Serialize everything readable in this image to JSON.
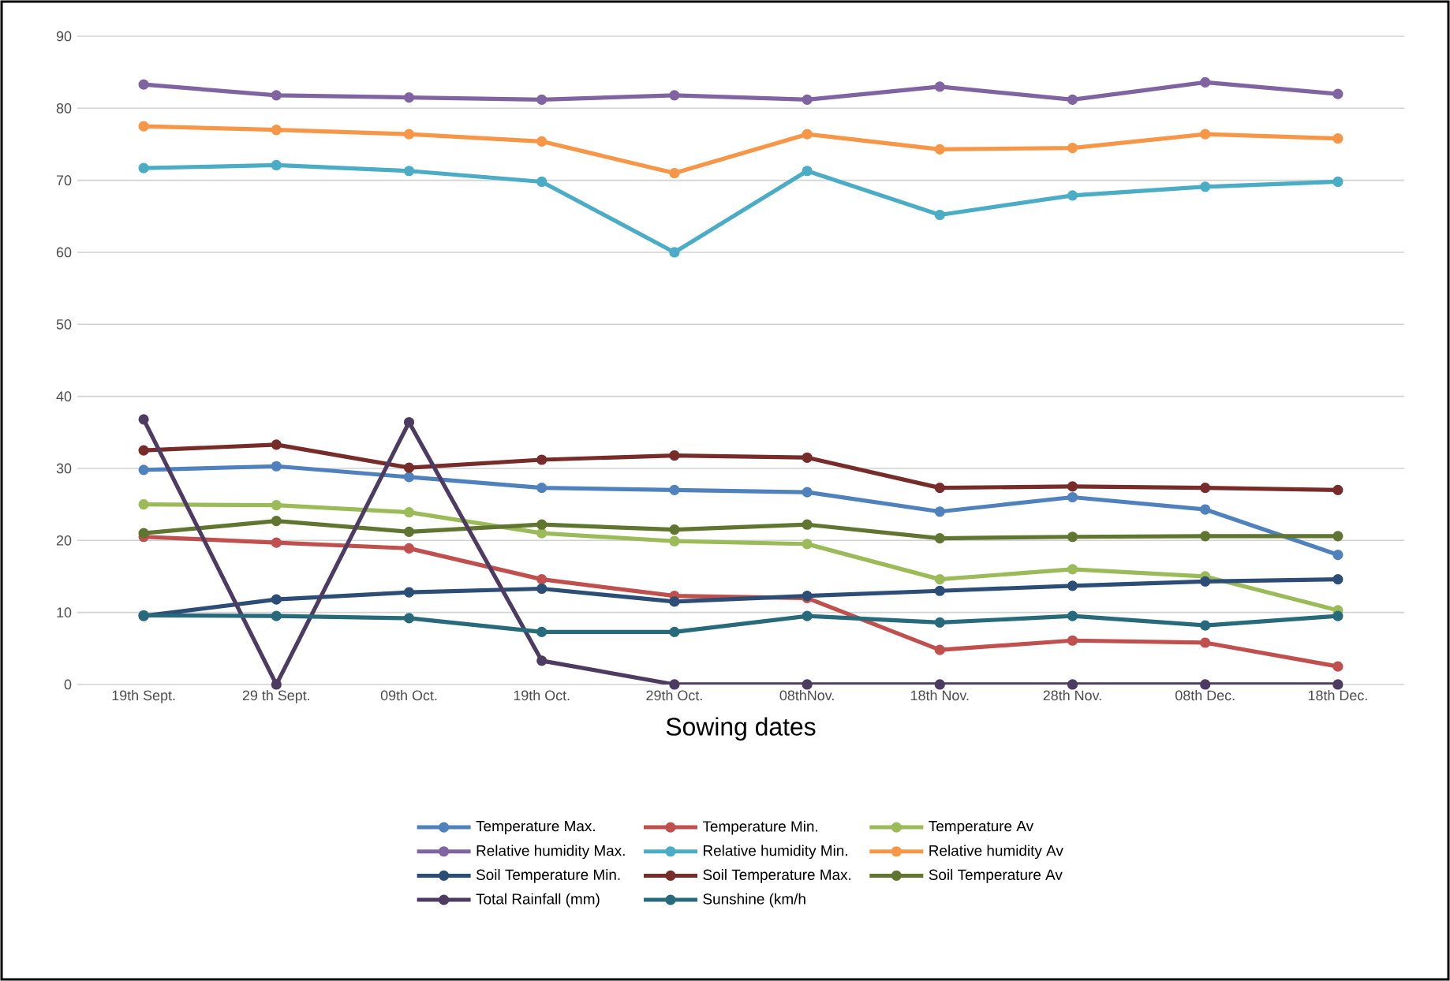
{
  "chart_data": {
    "type": "line",
    "xlabel": "Sowing dates",
    "categories": [
      "19th Sept.",
      "29 th Sept.",
      "09th  Oct.",
      "19th Oct.",
      "29th Oct.",
      "08thNov.",
      "18th Nov.",
      "28th Nov.",
      "08th Dec.",
      "18th Dec."
    ],
    "ylim": [
      0,
      90
    ],
    "yticks": [
      0,
      10,
      20,
      30,
      40,
      50,
      60,
      70,
      80,
      90
    ],
    "grid": "y",
    "legend": "bottom",
    "marker": "circle",
    "line_style": "solid",
    "series": [
      {
        "name": "Temperature Max.",
        "color": "#4f81bd",
        "values": [
          29.8,
          30.3,
          28.8,
          27.3,
          27.0,
          26.7,
          24.0,
          26.0,
          24.3,
          18.0
        ]
      },
      {
        "name": "Temperature Min.",
        "color": "#c0504d",
        "values": [
          20.5,
          19.7,
          18.9,
          14.6,
          12.3,
          12.0,
          4.8,
          6.1,
          5.8,
          2.5
        ]
      },
      {
        "name": "Temperature Av",
        "color": "#9bbb59",
        "values": [
          25.0,
          24.9,
          23.9,
          21.0,
          19.9,
          19.5,
          14.6,
          16.0,
          15.0,
          10.3
        ]
      },
      {
        "name": "Relative humidity Max.",
        "color": "#8064a2",
        "values": [
          83.3,
          81.8,
          81.5,
          81.2,
          81.8,
          81.2,
          83.0,
          81.2,
          83.6,
          82.0
        ]
      },
      {
        "name": "Relative humidity Min.",
        "color": "#4bacc6",
        "values": [
          71.7,
          72.1,
          71.3,
          69.8,
          60.0,
          71.3,
          65.2,
          67.9,
          69.1,
          69.8
        ]
      },
      {
        "name": "Relative humidity Av",
        "color": "#f79646",
        "values": [
          77.5,
          77.0,
          76.4,
          75.4,
          71.0,
          76.4,
          74.3,
          74.5,
          76.4,
          75.8
        ]
      },
      {
        "name": "Soil Temperature  Min.",
        "color": "#2c4d75",
        "values": [
          9.5,
          11.8,
          12.8,
          13.3,
          11.5,
          12.3,
          13.0,
          13.7,
          14.3,
          14.6
        ]
      },
      {
        "name": "Soil Temperature  Max.",
        "color": "#772c2a",
        "values": [
          32.5,
          33.3,
          30.1,
          31.2,
          31.8,
          31.5,
          27.3,
          27.5,
          27.3,
          27.0
        ]
      },
      {
        "name": "Soil Temperature  Av",
        "color": "#5f7530",
        "values": [
          21.0,
          22.7,
          21.2,
          22.2,
          21.5,
          22.2,
          20.3,
          20.5,
          20.6,
          20.6
        ]
      },
      {
        "name": "Total Rainfall (mm)",
        "color": "#4d3b62",
        "values": [
          36.8,
          0,
          36.4,
          3.3,
          0,
          0,
          0,
          0,
          0,
          0
        ]
      },
      {
        "name": "Sunshine (km/h",
        "color": "#276a7c",
        "values": [
          9.6,
          9.5,
          9.2,
          7.3,
          7.3,
          9.5,
          8.6,
          9.5,
          8.2,
          9.5
        ]
      }
    ]
  }
}
